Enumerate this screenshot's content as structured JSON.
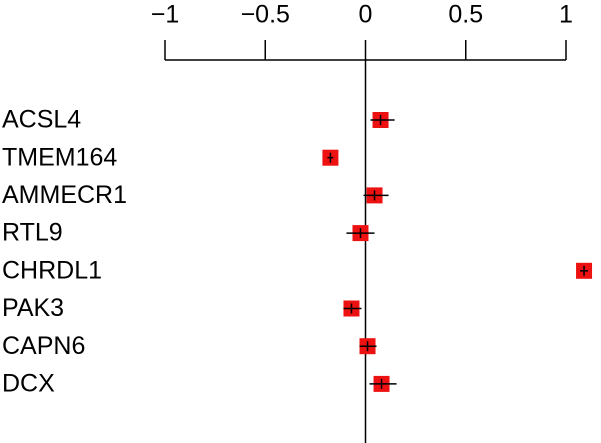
{
  "chart_data": {
    "type": "forest",
    "categories": [
      "ACSL4",
      "TMEM164",
      "AMMECR1",
      "RTL9",
      "CHRDL1",
      "PAK3",
      "CAPN6",
      "DCX"
    ],
    "values": [
      0.075,
      -0.175,
      0.045,
      -0.025,
      1.09,
      -0.07,
      0.01,
      0.08
    ],
    "lower": [
      0.025,
      -0.19,
      -0.01,
      -0.095,
      1.07,
      -0.11,
      -0.03,
      0.02
    ],
    "upper": [
      0.145,
      -0.16,
      0.115,
      0.045,
      1.11,
      -0.02,
      0.055,
      0.155
    ],
    "color": "#ee1111",
    "xlim": [
      -1,
      1
    ],
    "xticks": [
      {
        "value": -1,
        "label": "−1"
      },
      {
        "value": -0.5,
        "label": "−0.5"
      },
      0,
      0.5,
      1
    ]
  }
}
